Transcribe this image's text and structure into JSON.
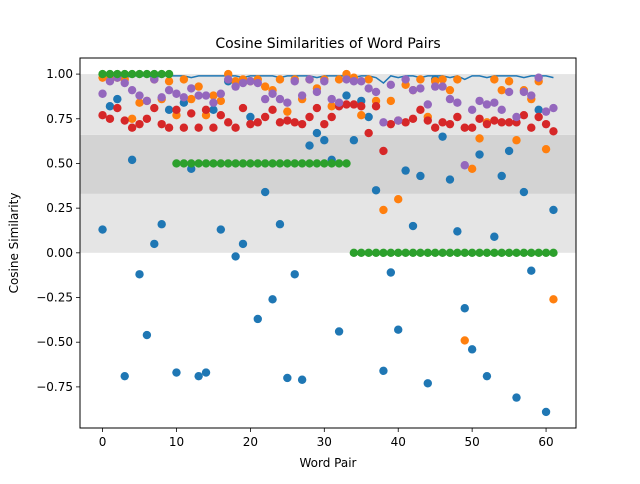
{
  "chart_data": {
    "type": "scatter",
    "title": "Cosine Similarities of Word Pairs",
    "xlabel": "Word Pair",
    "ylabel": "Cosine Similarity",
    "xlim": [
      -3.05,
      64.05
    ],
    "ylim": [
      -0.98,
      1.09
    ],
    "xticks": [
      0,
      10,
      20,
      30,
      40,
      50,
      60
    ],
    "xtick_labels": [
      "0",
      "10",
      "20",
      "30",
      "40",
      "50",
      "60"
    ],
    "yticks": [
      -0.75,
      -0.5,
      -0.25,
      0.0,
      0.25,
      0.5,
      0.75,
      1.0
    ],
    "ytick_labels": [
      "−0.75",
      "−0.50",
      "−0.25",
      "0.00",
      "0.25",
      "0.50",
      "0.75",
      "1.00"
    ],
    "grid": false,
    "legend": "none",
    "bands": [
      {
        "y0": 0.0,
        "y1": 0.33,
        "color": "#e5e5e5"
      },
      {
        "y0": 0.33,
        "y1": 0.66,
        "color": "#d3d3d3"
      },
      {
        "y0": 0.66,
        "y1": 1.0,
        "color": "#e5e5e5"
      }
    ],
    "line_series": {
      "color": "#1f77b4",
      "x": [
        0,
        1,
        2,
        3,
        4,
        5,
        6,
        7,
        8,
        9,
        10,
        11,
        12,
        13,
        14,
        15,
        16,
        17,
        18,
        19,
        20,
        21,
        22,
        23,
        24,
        25,
        26,
        27,
        28,
        29,
        30,
        31,
        32,
        33,
        34,
        35,
        36,
        37,
        38,
        39,
        40,
        41,
        42,
        43,
        44,
        45,
        46,
        47,
        48,
        49,
        50,
        51,
        52,
        53,
        54,
        55,
        56,
        57,
        58,
        59,
        60,
        61
      ],
      "values": [
        0.99,
        0.99,
        0.99,
        0.98,
        0.99,
        0.99,
        0.99,
        0.98,
        0.99,
        0.99,
        0.99,
        0.99,
        0.98,
        0.99,
        0.99,
        0.99,
        0.99,
        0.99,
        0.99,
        0.98,
        0.99,
        0.99,
        0.99,
        0.99,
        0.98,
        0.99,
        0.99,
        0.99,
        0.99,
        0.98,
        0.99,
        0.99,
        0.99,
        0.99,
        0.98,
        0.99,
        0.99,
        0.98,
        0.95,
        0.99,
        0.98,
        0.99,
        0.99,
        0.98,
        0.99,
        0.99,
        0.99,
        0.98,
        0.99,
        0.97,
        0.99,
        0.99,
        0.98,
        0.99,
        0.99,
        0.99,
        0.99,
        0.98,
        0.99,
        0.99,
        0.99,
        0.98
      ]
    },
    "series": [
      {
        "color": "#1f77b4",
        "x": [
          0,
          1,
          2,
          3,
          4,
          5,
          6,
          7,
          8,
          9,
          10,
          11,
          12,
          13,
          14,
          15,
          16,
          17,
          18,
          19,
          20,
          21,
          22,
          23,
          24,
          25,
          26,
          27,
          28,
          29,
          30,
          31,
          32,
          33,
          34,
          35,
          36,
          37,
          38,
          39,
          40,
          41,
          42,
          43,
          44,
          45,
          46,
          47,
          48,
          49,
          50,
          51,
          52,
          53,
          54,
          55,
          56,
          57,
          58,
          59,
          60,
          61
        ],
        "values": [
          0.13,
          0.82,
          0.86,
          -0.69,
          0.52,
          -0.12,
          -0.46,
          0.05,
          0.16,
          0.8,
          -0.67,
          0.84,
          0.47,
          -0.69,
          -0.67,
          0.8,
          0.13,
          0.96,
          -0.02,
          0.05,
          0.76,
          -0.37,
          0.34,
          -0.26,
          0.16,
          -0.7,
          -0.12,
          -0.71,
          0.6,
          0.67,
          0.63,
          0.52,
          -0.44,
          0.88,
          0.63,
          0.85,
          0.76,
          0.35,
          -0.66,
          -0.11,
          -0.43,
          0.46,
          0.15,
          0.43,
          -0.73,
          0.97,
          0.65,
          0.41,
          0.12,
          -0.31,
          -0.54,
          0.55,
          -0.69,
          0.09,
          0.43,
          0.57,
          -0.81,
          0.34,
          -0.1,
          0.8,
          -0.89,
          0.24
        ]
      },
      {
        "color": "#ff7f0e",
        "x": [
          0,
          1,
          2,
          3,
          4,
          5,
          6,
          7,
          8,
          9,
          10,
          11,
          12,
          13,
          14,
          15,
          16,
          17,
          18,
          19,
          20,
          21,
          22,
          23,
          24,
          25,
          26,
          27,
          28,
          29,
          30,
          31,
          32,
          33,
          34,
          35,
          36,
          37,
          38,
          39,
          40,
          41,
          42,
          43,
          44,
          45,
          46,
          47,
          48,
          49,
          50,
          51,
          52,
          53,
          54,
          55,
          56,
          57,
          58,
          59,
          60,
          61
        ],
        "values": [
          0.98,
          0.97,
          0.98,
          0.97,
          0.75,
          0.84,
          0.85,
          0.97,
          0.86,
          0.96,
          0.77,
          0.97,
          0.86,
          0.93,
          0.77,
          0.88,
          0.85,
          1.0,
          0.96,
          0.97,
          0.96,
          0.97,
          0.93,
          0.91,
          0.97,
          0.79,
          0.97,
          0.86,
          0.97,
          0.92,
          0.97,
          0.82,
          0.97,
          1.0,
          0.98,
          0.77,
          0.97,
          0.85,
          0.24,
          0.85,
          0.3,
          0.94,
          0.91,
          0.97,
          0.76,
          0.96,
          0.97,
          0.91,
          0.97,
          -0.49,
          0.47,
          0.64,
          0.73,
          0.97,
          0.91,
          0.96,
          0.63,
          0.91,
          0.86,
          0.96,
          0.58,
          -0.26
        ]
      },
      {
        "color": "#d62728",
        "x": [
          0,
          1,
          2,
          3,
          4,
          5,
          6,
          7,
          8,
          9,
          10,
          11,
          12,
          13,
          14,
          15,
          16,
          17,
          18,
          19,
          20,
          21,
          22,
          23,
          24,
          25,
          26,
          27,
          28,
          29,
          30,
          31,
          32,
          33,
          34,
          35,
          36,
          37,
          38,
          39,
          40,
          41,
          42,
          43,
          44,
          45,
          46,
          47,
          48,
          49,
          50,
          51,
          52,
          53,
          54,
          55,
          56,
          57,
          58,
          59,
          60,
          61
        ],
        "values": [
          0.77,
          0.75,
          0.81,
          0.74,
          0.7,
          0.72,
          0.75,
          0.81,
          0.72,
          0.7,
          0.8,
          0.7,
          0.78,
          0.7,
          0.8,
          0.7,
          0.77,
          0.73,
          0.7,
          0.81,
          0.72,
          0.73,
          0.76,
          0.8,
          0.73,
          0.74,
          0.73,
          0.72,
          0.76,
          0.81,
          0.72,
          0.76,
          0.82,
          0.83,
          0.83,
          0.82,
          0.67,
          0.82,
          0.57,
          0.72,
          0.74,
          0.73,
          0.75,
          0.8,
          0.74,
          0.7,
          0.73,
          0.72,
          0.76,
          0.7,
          0.7,
          0.75,
          0.72,
          0.74,
          0.73,
          0.73,
          0.73,
          0.77,
          0.7,
          0.76,
          0.72,
          0.68
        ]
      },
      {
        "color": "#9467bd",
        "x": [
          0,
          1,
          2,
          3,
          4,
          5,
          6,
          7,
          8,
          9,
          10,
          11,
          12,
          13,
          14,
          15,
          16,
          17,
          18,
          19,
          20,
          21,
          22,
          23,
          24,
          25,
          26,
          27,
          28,
          29,
          30,
          31,
          32,
          33,
          34,
          35,
          36,
          37,
          38,
          39,
          40,
          41,
          42,
          43,
          44,
          45,
          46,
          47,
          48,
          49,
          50,
          51,
          52,
          53,
          54,
          55,
          56,
          57,
          58,
          59,
          60,
          61
        ],
        "values": [
          0.89,
          0.96,
          0.98,
          0.95,
          0.91,
          0.88,
          0.85,
          0.97,
          0.87,
          0.91,
          0.89,
          0.87,
          0.92,
          0.88,
          0.88,
          0.84,
          0.89,
          0.97,
          0.93,
          0.95,
          0.96,
          0.95,
          0.86,
          0.89,
          0.86,
          0.84,
          0.96,
          0.88,
          0.97,
          0.9,
          0.96,
          0.86,
          0.84,
          0.97,
          0.96,
          0.96,
          0.92,
          0.9,
          0.73,
          0.94,
          0.74,
          0.97,
          0.91,
          0.92,
          0.83,
          0.93,
          0.93,
          0.86,
          0.84,
          0.49,
          0.8,
          0.85,
          0.83,
          0.84,
          0.8,
          0.9,
          0.76,
          0.9,
          0.88,
          0.98,
          0.79,
          0.81
        ]
      },
      {
        "color": "#2ca02c",
        "x": [
          0,
          1,
          2,
          3,
          4,
          5,
          6,
          7,
          8,
          9,
          10,
          11,
          12,
          13,
          14,
          15,
          16,
          17,
          18,
          19,
          20,
          21,
          22,
          23,
          24,
          25,
          26,
          27,
          28,
          29,
          30,
          31,
          32,
          33,
          34,
          35,
          36,
          37,
          38,
          39,
          40,
          41,
          42,
          43,
          44,
          45,
          46,
          47,
          48,
          49,
          50,
          51,
          52,
          53,
          54,
          55,
          56,
          57,
          58,
          59,
          60,
          61
        ],
        "values": [
          1.0,
          1.0,
          1.0,
          1.0,
          1.0,
          1.0,
          1.0,
          1.0,
          1.0,
          1.0,
          0.5,
          0.5,
          0.5,
          0.5,
          0.5,
          0.5,
          0.5,
          0.5,
          0.5,
          0.5,
          0.5,
          0.5,
          0.5,
          0.5,
          0.5,
          0.5,
          0.5,
          0.5,
          0.5,
          0.5,
          0.5,
          0.5,
          0.5,
          0.5,
          0.0,
          0.0,
          0.0,
          0.0,
          0.0,
          0.0,
          0.0,
          0.0,
          0.0,
          0.0,
          0.0,
          0.0,
          0.0,
          0.0,
          0.0,
          0.0,
          0.0,
          0.0,
          0.0,
          0.0,
          0.0,
          0.0,
          0.0,
          0.0,
          0.0,
          0.0,
          0.0,
          0.0
        ]
      }
    ]
  }
}
